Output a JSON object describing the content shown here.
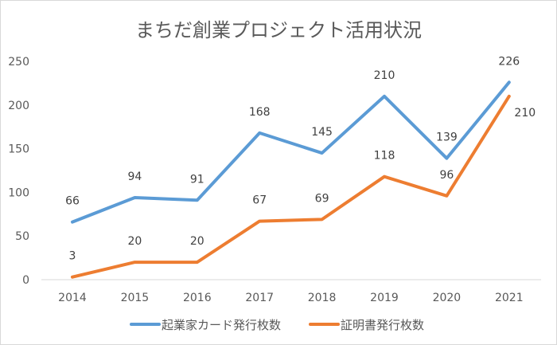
{
  "chart_data": {
    "type": "line",
    "title": "まちだ創業プロジェクト活用状況",
    "categories": [
      "2014",
      "2015",
      "2016",
      "2017",
      "2018",
      "2019",
      "2020",
      "2021"
    ],
    "series": [
      {
        "name": "起業家カード発行枚数",
        "color": "#5b9bd5",
        "values": [
          66,
          94,
          91,
          168,
          145,
          210,
          139,
          226
        ]
      },
      {
        "name": "証明書発行枚数",
        "color": "#ed7d31",
        "values": [
          3,
          20,
          20,
          67,
          69,
          118,
          96,
          210
        ]
      }
    ],
    "ylim": [
      0,
      250
    ],
    "yticks": [
      0,
      50,
      100,
      150,
      200,
      250
    ],
    "grid": false,
    "legend": "bottom",
    "data_labels": true
  }
}
